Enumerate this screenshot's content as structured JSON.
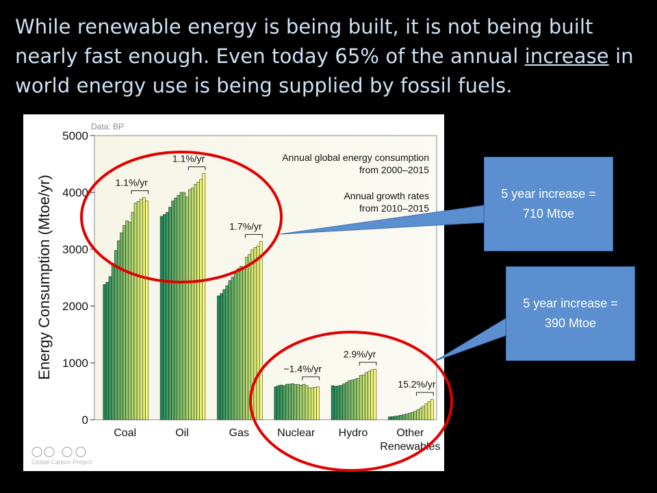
{
  "slide": {
    "title_part1": "While renewable energy is being built, it is not being built nearly fast enough. Even today 65% of the annual ",
    "title_underlined": "increase",
    "title_part2": " in world energy use is being supplied by fossil fuels."
  },
  "callouts": [
    {
      "line1": "5 year increase =",
      "line2": "710 Mtoe"
    },
    {
      "line1": "5 year increase =",
      "line2": "390 Mtoe"
    }
  ],
  "colors": {
    "background": "#000000",
    "title_text": "#cfe2f3",
    "callout_fill": "#5b8fd0",
    "highlight_circle": "#e00000",
    "bar_gradient_start": "#1e8a5a",
    "bar_gradient_end": "#f4f777",
    "plot_background": "#f7f5e8"
  },
  "chart_data": {
    "type": "bar",
    "source_label": "Data: BP",
    "ylabel": "Energy Consumption (Mtoe/yr)",
    "ylim": [
      0,
      5000
    ],
    "yticks": [
      0,
      1000,
      2000,
      3000,
      4000,
      5000
    ],
    "legend_line1": "Annual global energy consumption",
    "legend_line2": "from 2000–2015",
    "legend_line3": "Annual growth rates",
    "legend_line4": "from 2010–2015",
    "credit": "Global Carbon Project",
    "categories": [
      {
        "label1": "Coal",
        "label2": "",
        "rate": "1.1%/yr",
        "values": [
          2380,
          2420,
          2520,
          2750,
          2980,
          3150,
          3290,
          3420,
          3500,
          3480,
          3650,
          3810,
          3840,
          3880,
          3910,
          3850
        ]
      },
      {
        "label1": "Oil",
        "label2": "",
        "rate": "1.1%/yr",
        "values": [
          3580,
          3610,
          3650,
          3740,
          3850,
          3900,
          3950,
          4000,
          4000,
          3920,
          4050,
          4080,
          4140,
          4180,
          4230,
          4330
        ]
      },
      {
        "label1": "Gas",
        "label2": "",
        "rate": "1.7%/yr",
        "values": [
          2180,
          2220,
          2290,
          2360,
          2450,
          2510,
          2570,
          2660,
          2700,
          2650,
          2860,
          2910,
          2990,
          3030,
          3060,
          3140
        ]
      },
      {
        "label1": "Nuclear",
        "label2": "",
        "rate": "−1.4%/yr",
        "values": [
          580,
          600,
          610,
          600,
          625,
          627,
          635,
          620,
          620,
          610,
          625,
          600,
          560,
          565,
          575,
          580
        ]
      },
      {
        "label1": "Hydro",
        "label2": "",
        "rate": "2.9%/yr",
        "values": [
          600,
          590,
          595,
          605,
          630,
          660,
          690,
          700,
          715,
          730,
          780,
          790,
          830,
          855,
          880,
          890
        ]
      },
      {
        "label1": "Other",
        "label2": "Renewables",
        "rate": "15.2%/yr",
        "values": [
          50,
          55,
          62,
          70,
          80,
          90,
          100,
          115,
          130,
          150,
          175,
          205,
          240,
          280,
          320,
          360
        ]
      }
    ]
  }
}
